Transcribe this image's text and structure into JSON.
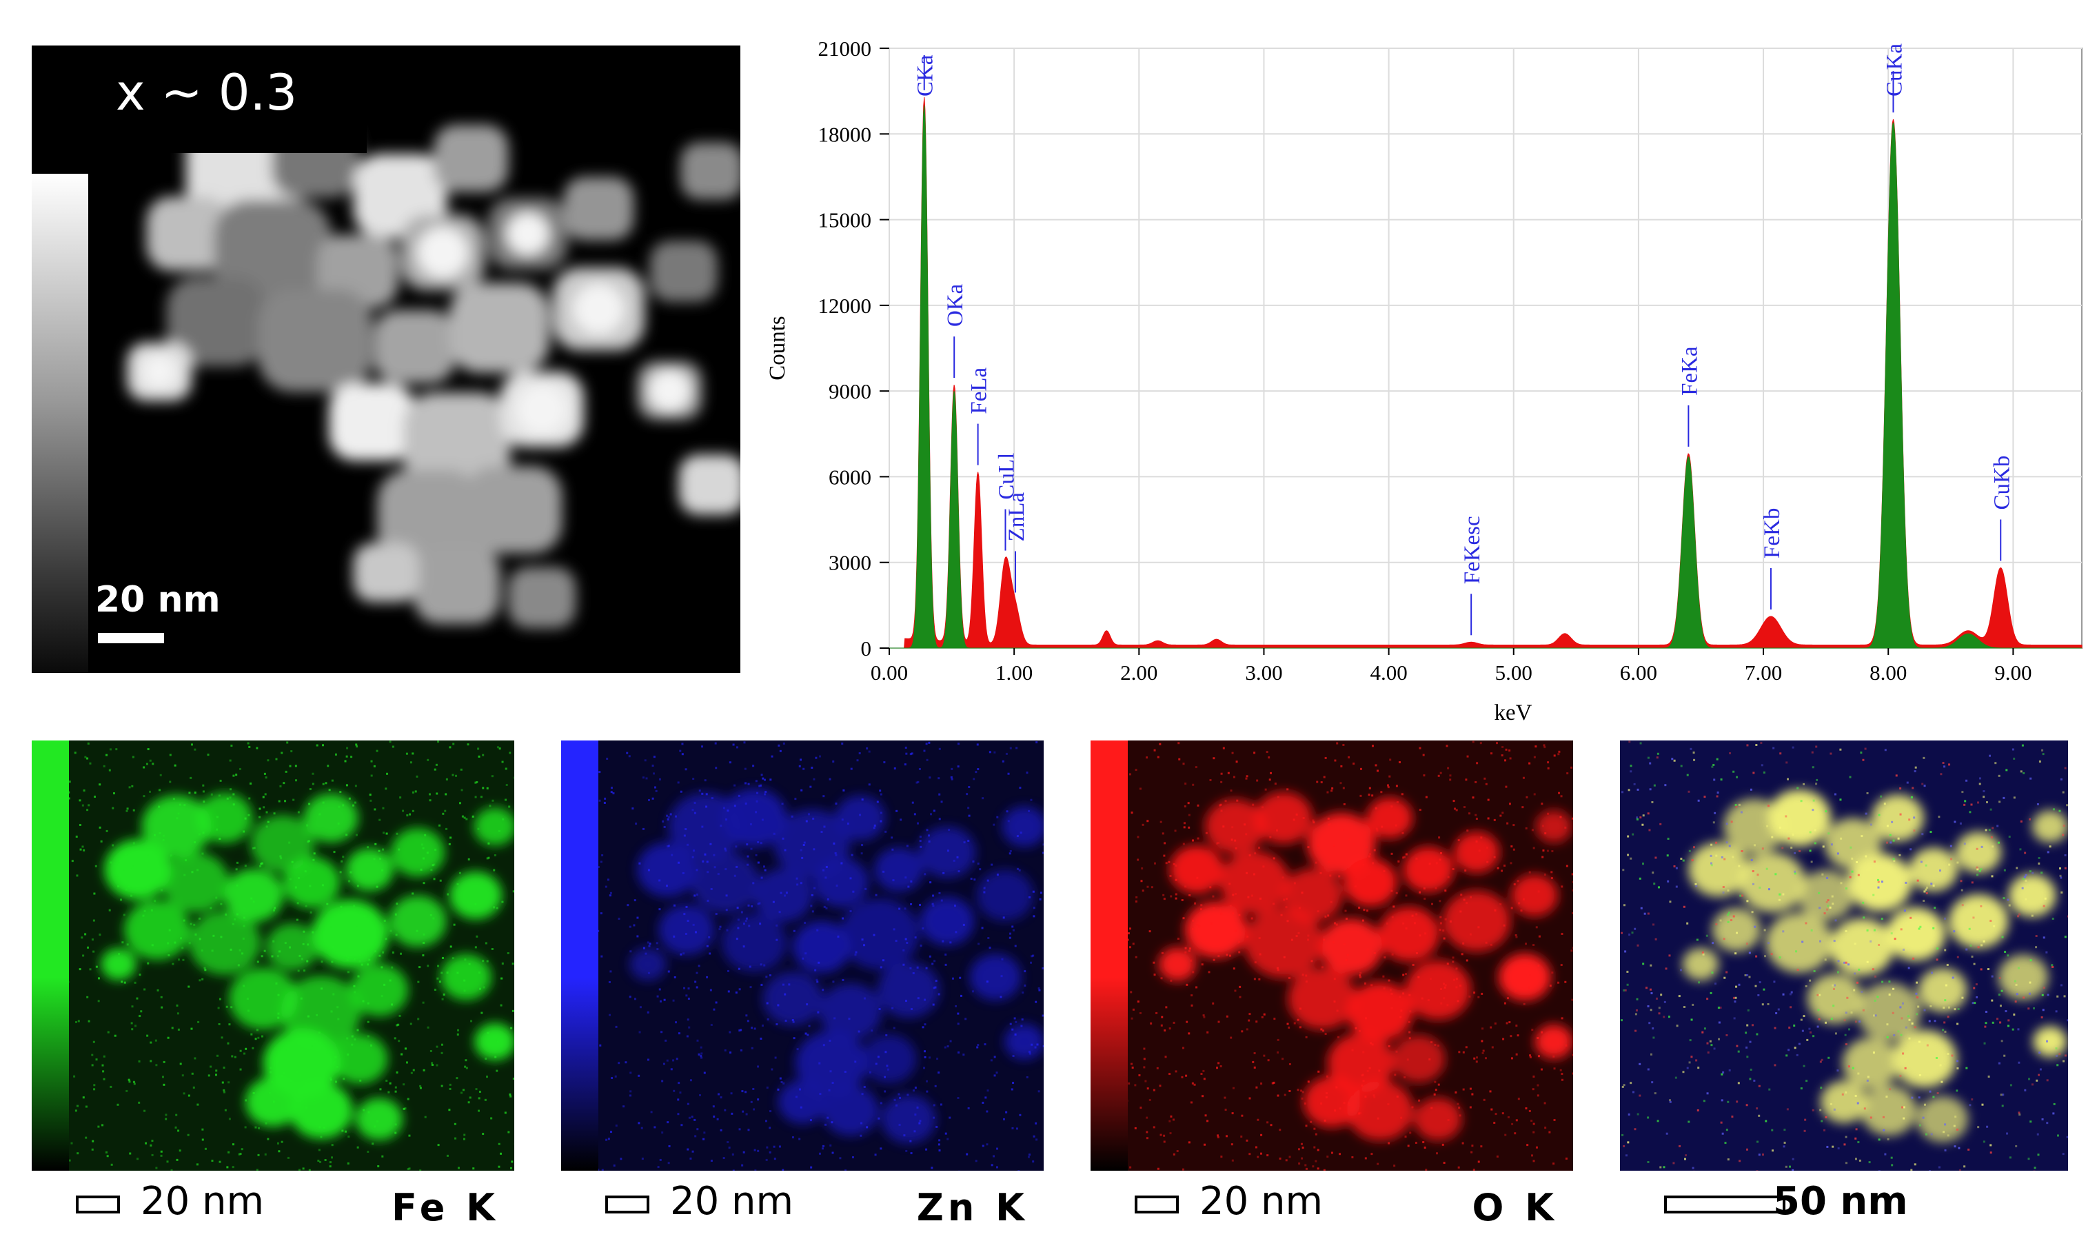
{
  "stem_image": {
    "label": "x ~ 0.3",
    "scale_bar": "20 nm",
    "icon": "stem-micrograph"
  },
  "chart_data": {
    "type": "area",
    "title": "",
    "xlabel": "keV",
    "ylabel": "Counts",
    "xlim": [
      0.0,
      9.55
    ],
    "ylim": [
      0,
      21000
    ],
    "x_ticks": [
      0.0,
      1.0,
      2.0,
      3.0,
      4.0,
      5.0,
      6.0,
      7.0,
      8.0,
      9.0
    ],
    "x_tick_labels": [
      "0.00",
      "1.00",
      "2.00",
      "3.00",
      "4.00",
      "5.00",
      "6.00",
      "7.00",
      "8.00",
      "9.00"
    ],
    "y_ticks": [
      0,
      3000,
      6000,
      9000,
      12000,
      15000,
      18000,
      21000
    ],
    "y_tick_labels": [
      "0",
      "3000",
      "6000",
      "9000",
      "12000",
      "15000",
      "18000",
      "21000"
    ],
    "grid": true,
    "colors": {
      "identified": "#1a8a1a",
      "background": "#e81010",
      "labels": "#2a2ae0"
    },
    "peaks": [
      {
        "label": "CKa",
        "energy": 0.28,
        "counts": 19000,
        "color": "green",
        "width": 0.03
      },
      {
        "label": "OKa",
        "energy": 0.52,
        "counts": 9000,
        "color": "green",
        "width": 0.03
      },
      {
        "label": "FeLa",
        "energy": 0.71,
        "counts": 6000,
        "color": "red",
        "width": 0.03
      },
      {
        "label": "CuLl",
        "energy": 0.93,
        "counts": 2900,
        "color": "red",
        "width": 0.04
      },
      {
        "label": "ZnLa",
        "energy": 1.01,
        "counts": 1200,
        "color": "red",
        "width": 0.04
      },
      {
        "label": "",
        "energy": 1.74,
        "counts": 500,
        "color": "red",
        "width": 0.03
      },
      {
        "label": "",
        "energy": 2.15,
        "counts": 150,
        "color": "red",
        "width": 0.04
      },
      {
        "label": "",
        "energy": 2.62,
        "counts": 200,
        "color": "red",
        "width": 0.04
      },
      {
        "label": "FeKesc",
        "energy": 4.66,
        "counts": 100,
        "color": "red",
        "width": 0.05
      },
      {
        "label": "",
        "energy": 5.41,
        "counts": 400,
        "color": "red",
        "width": 0.05
      },
      {
        "label": "FeKa",
        "energy": 6.4,
        "counts": 6700,
        "color": "green",
        "width": 0.05
      },
      {
        "label": "FeKb",
        "energy": 7.06,
        "counts": 1000,
        "color": "red",
        "width": 0.08
      },
      {
        "label": "CuKa",
        "energy": 8.04,
        "counts": 18400,
        "color": "green",
        "width": 0.055
      },
      {
        "label": "",
        "energy": 8.64,
        "counts": 500,
        "color": "green",
        "width": 0.08
      },
      {
        "label": "CuKb",
        "energy": 8.9,
        "counts": 2700,
        "color": "red",
        "width": 0.055
      }
    ],
    "background_counts": 110
  },
  "maps": [
    {
      "element": "Fe K",
      "scale_bar": "20 nm",
      "color": "#22e822",
      "bg": "#062006",
      "icon": "fe-element-map"
    },
    {
      "element": "Zn K",
      "scale_bar": "20 nm",
      "color": "#2424ff",
      "bg": "#06062a",
      "icon": "zn-element-map"
    },
    {
      "element": "O K",
      "scale_bar": "20 nm",
      "color": "#ff1a1a",
      "bg": "#260404",
      "icon": "o-element-map"
    },
    {
      "element": "",
      "scale_bar": "50 nm",
      "color": "#f2f27a",
      "bg": "#0c0c48",
      "icon": "overlay-element-map"
    }
  ]
}
